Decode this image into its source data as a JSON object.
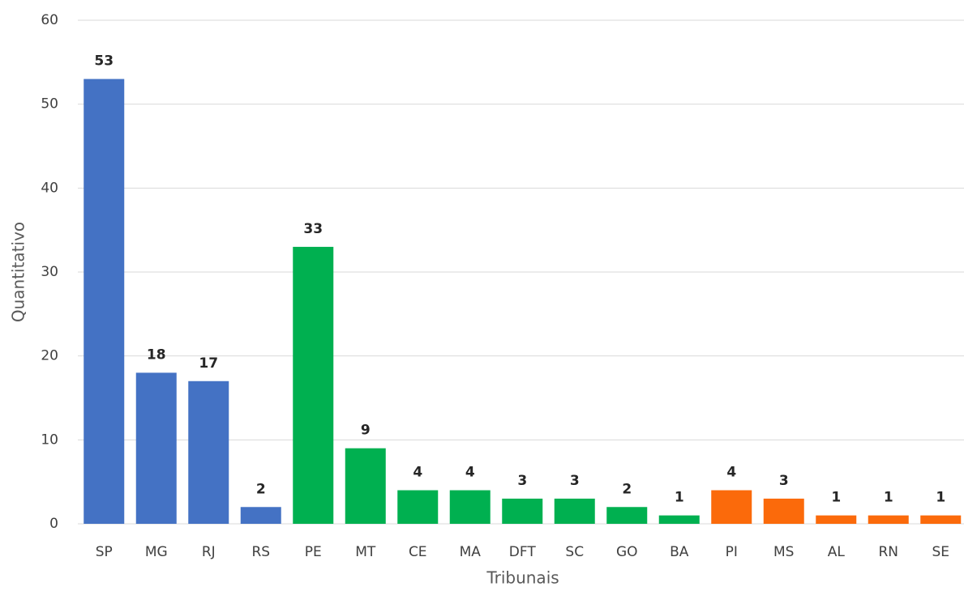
{
  "chart_data": {
    "type": "bar",
    "x_label": "Tribunais",
    "y_label": "Quantitativo",
    "categories": [
      "SP",
      "MG",
      "RJ",
      "RS",
      "PE",
      "MT",
      "CE",
      "MA",
      "DFT",
      "SC",
      "GO",
      "BA",
      "PI",
      "MS",
      "AL",
      "RN",
      "SE"
    ],
    "values": [
      53,
      18,
      17,
      2,
      33,
      9,
      4,
      4,
      3,
      3,
      2,
      1,
      4,
      3,
      1,
      1,
      1
    ],
    "colors": [
      "#4472c4",
      "#4472c4",
      "#4472c4",
      "#4472c4",
      "#00b050",
      "#00b050",
      "#00b050",
      "#00b050",
      "#00b050",
      "#00b050",
      "#00b050",
      "#00b050",
      "#fb6a0b",
      "#fb6a0b",
      "#fb6a0b",
      "#fb6a0b",
      "#fb6a0b"
    ],
    "ylim": [
      0,
      60
    ],
    "yticks": [
      0,
      10,
      20,
      30,
      40,
      50,
      60
    ],
    "grid": true
  }
}
